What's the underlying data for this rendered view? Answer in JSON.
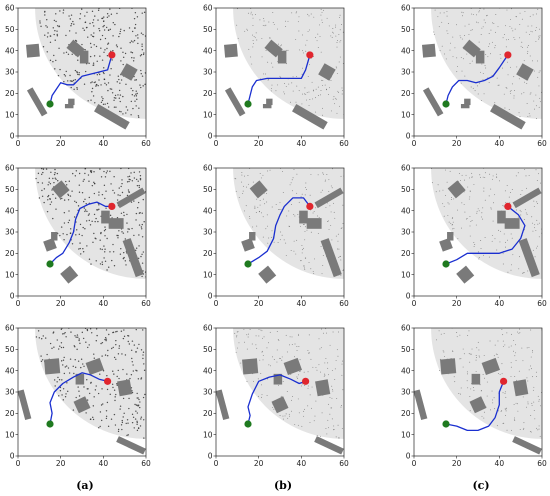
{
  "figure": {
    "captions": [
      "(a)",
      "(b)",
      "(c)"
    ],
    "axis": {
      "x_ticks": [
        "0",
        "20",
        "40",
        "60"
      ],
      "y_ticks": [
        "0",
        "10",
        "20",
        "30",
        "40",
        "50",
        "60"
      ],
      "xlim": [
        0,
        60
      ],
      "ylim": [
        0,
        60
      ]
    },
    "colors": {
      "free_space": "#e4e4e4",
      "obstacle": "#7a7a7a",
      "path": "#1a2fd0",
      "start": "#1f7a1f",
      "goal": "#e0262e",
      "samples": "#333333"
    },
    "rows": [
      {
        "sector_center": [
          60,
          60
        ],
        "sector_radius": 52,
        "start": [
          15,
          15
        ],
        "goal": [
          44,
          38
        ],
        "obstacles": [
          {
            "cx": 7,
            "cy": 40,
            "w": 6,
            "h": 6,
            "angle": 5
          },
          {
            "cx": 27,
            "cy": 41,
            "w": 7,
            "h": 5,
            "angle": -40
          },
          {
            "cx": 31,
            "cy": 37,
            "w": 4,
            "h": 6,
            "angle": 0
          },
          {
            "cx": 52,
            "cy": 30,
            "w": 6,
            "h": 6,
            "angle": -30
          },
          {
            "cx": 9,
            "cy": 16,
            "w": 3,
            "h": 14,
            "angle": 30
          },
          {
            "cx": 25,
            "cy": 16,
            "w": 3,
            "h": 3,
            "angle": 0
          },
          {
            "cx": 24,
            "cy": 14,
            "w": 4,
            "h": 2,
            "angle": 0
          },
          {
            "cx": 44,
            "cy": 9,
            "w": 4,
            "h": 17,
            "angle": 60
          }
        ],
        "paths": [
          [
            [
              15,
              15
            ],
            [
              16,
              19
            ],
            [
              18,
              22
            ],
            [
              20,
              25
            ],
            [
              23,
              24
            ],
            [
              26,
              24
            ],
            [
              30,
              28
            ],
            [
              34,
              29
            ],
            [
              38,
              30
            ],
            [
              42,
              31
            ],
            [
              44,
              38
            ]
          ],
          [
            [
              15,
              15
            ],
            [
              16,
              19
            ],
            [
              17,
              23
            ],
            [
              19,
              26
            ],
            [
              24,
              27
            ],
            [
              29,
              27
            ],
            [
              35,
              27
            ],
            [
              40,
              27
            ],
            [
              42,
              31
            ],
            [
              44,
              38
            ]
          ],
          [
            [
              15,
              15
            ],
            [
              16,
              19
            ],
            [
              18,
              23
            ],
            [
              21,
              26
            ],
            [
              25,
              26
            ],
            [
              29,
              25
            ],
            [
              33,
              26
            ],
            [
              37,
              28
            ],
            [
              40,
              32
            ],
            [
              44,
              38
            ]
          ]
        ]
      },
      {
        "sector_center": [
          60,
          60
        ],
        "sector_radius": 52,
        "start": [
          15,
          15
        ],
        "goal": [
          44,
          42
        ],
        "obstacles": [
          {
            "cx": 20,
            "cy": 50,
            "w": 6,
            "h": 6,
            "angle": 40
          },
          {
            "cx": 53,
            "cy": 46,
            "w": 3,
            "h": 14,
            "angle": -60
          },
          {
            "cx": 41,
            "cy": 37,
            "w": 4,
            "h": 6,
            "angle": 0
          },
          {
            "cx": 46,
            "cy": 34,
            "w": 7,
            "h": 5,
            "angle": 0
          },
          {
            "cx": 15,
            "cy": 24,
            "w": 5,
            "h": 5,
            "angle": 20
          },
          {
            "cx": 17,
            "cy": 28,
            "w": 3,
            "h": 4,
            "angle": 0
          },
          {
            "cx": 24,
            "cy": 10,
            "w": 6,
            "h": 6,
            "angle": 40
          },
          {
            "cx": 54,
            "cy": 18,
            "w": 4,
            "h": 18,
            "angle": 20
          }
        ],
        "paths": [
          [
            [
              15,
              15
            ],
            [
              18,
              18
            ],
            [
              21,
              20
            ],
            [
              24,
              25
            ],
            [
              26,
              30
            ],
            [
              27,
              36
            ],
            [
              29,
              41
            ],
            [
              33,
              43
            ],
            [
              37,
              44
            ],
            [
              41,
              42
            ],
            [
              44,
              42
            ]
          ],
          [
            [
              15,
              15
            ],
            [
              20,
              18
            ],
            [
              24,
              21
            ],
            [
              27,
              27
            ],
            [
              28,
              33
            ],
            [
              30,
              38
            ],
            [
              32,
              42
            ],
            [
              36,
              46
            ],
            [
              41,
              46
            ],
            [
              44,
              42
            ]
          ],
          [
            [
              15,
              15
            ],
            [
              20,
              17
            ],
            [
              25,
              20
            ],
            [
              32,
              20
            ],
            [
              40,
              20
            ],
            [
              46,
              22
            ],
            [
              50,
              27
            ],
            [
              52,
              33
            ],
            [
              49,
              38
            ],
            [
              44,
              42
            ]
          ]
        ]
      },
      {
        "sector_center": [
          60,
          60
        ],
        "sector_radius": 52,
        "start": [
          15,
          15
        ],
        "goal": [
          42,
          35
        ],
        "obstacles": [
          {
            "cx": 16,
            "cy": 42,
            "w": 7,
            "h": 7,
            "angle": 5
          },
          {
            "cx": 36,
            "cy": 42,
            "w": 7,
            "h": 6,
            "angle": 20
          },
          {
            "cx": 29,
            "cy": 36,
            "w": 4,
            "h": 5,
            "angle": 0
          },
          {
            "cx": 50,
            "cy": 32,
            "w": 6,
            "h": 7,
            "angle": 10
          },
          {
            "cx": 30,
            "cy": 24,
            "w": 6,
            "h": 6,
            "angle": 25
          },
          {
            "cx": 3,
            "cy": 24,
            "w": 3,
            "h": 14,
            "angle": 15
          },
          {
            "cx": 53,
            "cy": 5,
            "w": 3,
            "h": 14,
            "angle": 65
          }
        ],
        "paths": [
          [
            [
              15,
              15
            ],
            [
              16,
              20
            ],
            [
              15,
              25
            ],
            [
              17,
              30
            ],
            [
              21,
              34
            ],
            [
              26,
              37
            ],
            [
              30,
              39
            ],
            [
              34,
              38
            ],
            [
              38,
              36
            ],
            [
              42,
              35
            ]
          ],
          [
            [
              15,
              15
            ],
            [
              16,
              19
            ],
            [
              15,
              23
            ],
            [
              17,
              29
            ],
            [
              20,
              35
            ],
            [
              25,
              37
            ],
            [
              30,
              38
            ],
            [
              35,
              36
            ],
            [
              39,
              34
            ],
            [
              42,
              35
            ]
          ],
          [
            [
              15,
              15
            ],
            [
              20,
              14
            ],
            [
              25,
              12
            ],
            [
              30,
              12
            ],
            [
              35,
              14
            ],
            [
              38,
              18
            ],
            [
              40,
              24
            ],
            [
              40,
              30
            ],
            [
              42,
              35
            ]
          ]
        ]
      }
    ]
  }
}
